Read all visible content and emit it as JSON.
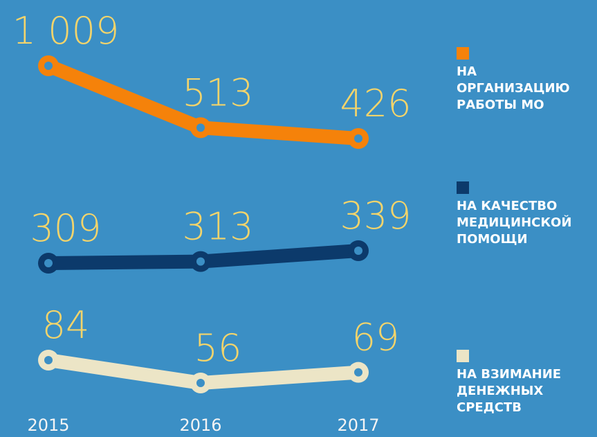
{
  "chart_data": {
    "type": "line",
    "categories": [
      "2015",
      "2016",
      "2017"
    ],
    "series": [
      {
        "name": "НА ОРГАНИЗАЦИЮ РАБОТЫ МО",
        "color": "#f5820a",
        "values": [
          1009,
          513,
          426
        ],
        "value_labels": [
          "1 009",
          "513",
          "426"
        ]
      },
      {
        "name": "НА КАЧЕСТВО МЕДИЦИНСКОЙ ПОМОЩИ",
        "color": "#0c3a6b",
        "values": [
          309,
          313,
          339
        ]
      },
      {
        "name": "НА ВЗИМАНИЕ ДЕНЕЖНЫХ СРЕДСТВ",
        "color": "#ece5c6",
        "values": [
          84,
          56,
          69
        ]
      }
    ]
  }
}
